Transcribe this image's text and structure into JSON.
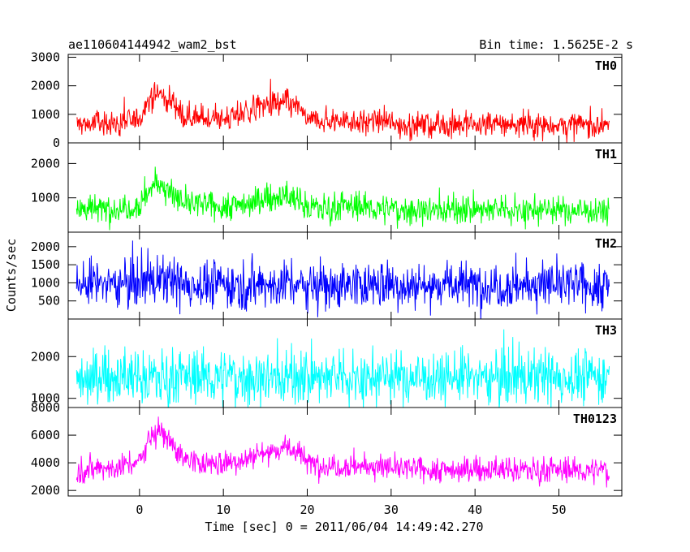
{
  "chart_data": {
    "type": "line",
    "title": "ae110604144942_wam2_bst",
    "subtitle": "Bin time: 1.5625E-2 s",
    "xlabel": "Time [sec] 0 = 2011/06/04 14:49:42.270",
    "ylabel": "Counts/sec",
    "xlim": [
      -8.5,
      57.5
    ],
    "x_ticks": [
      0,
      10,
      20,
      30,
      40,
      50
    ],
    "x_tick_labels": [
      "0",
      "10",
      "20",
      "30",
      "40",
      "50"
    ],
    "x_data_range": [
      -7.5,
      56
    ],
    "grid": false,
    "panels": [
      {
        "name": "TH0",
        "color": "#ff0000",
        "ylim": [
          0,
          3100
        ],
        "y_ticks": [
          0,
          1000,
          2000,
          3000
        ],
        "y_tick_labels": [
          "0",
          "1000",
          "2000",
          "3000"
        ],
        "noise": 230,
        "spike": 500,
        "trend": {
          "x": [
            -7.5,
            -2,
            0,
            1,
            2,
            3,
            4,
            5,
            7,
            10,
            13,
            15,
            17,
            18,
            19,
            20,
            22,
            25,
            28,
            29,
            30,
            35,
            40,
            45,
            50,
            56
          ],
          "y": [
            650,
            700,
            850,
            1450,
            1700,
            1650,
            1450,
            1000,
            850,
            800,
            1100,
            1300,
            1350,
            1350,
            1250,
            800,
            750,
            800,
            700,
            800,
            650,
            620,
            650,
            650,
            630,
            620
          ]
        }
      },
      {
        "name": "TH1",
        "color": "#00ff00",
        "ylim": [
          0,
          2600
        ],
        "y_ticks": [
          1000,
          2000
        ],
        "y_tick_labels": [
          "1000",
          "2000"
        ],
        "noise": 210,
        "spike": 420,
        "trend": {
          "x": [
            -7.5,
            -2,
            0,
            1,
            2,
            3,
            4,
            5,
            7,
            10,
            13,
            15,
            17,
            18,
            19,
            20,
            22,
            25,
            28,
            30,
            35,
            40,
            45,
            50,
            56
          ],
          "y": [
            650,
            700,
            800,
            1150,
            1450,
            1300,
            1050,
            850,
            800,
            750,
            850,
            950,
            1050,
            1000,
            900,
            750,
            700,
            750,
            700,
            650,
            650,
            650,
            650,
            640,
            620
          ]
        }
      },
      {
        "name": "TH2",
        "color": "#0000ff",
        "ylim": [
          0,
          2400
        ],
        "y_ticks": [
          500,
          1000,
          1500,
          2000
        ],
        "y_tick_labels": [
          "500",
          "1000",
          "1500",
          "2000"
        ],
        "noise": 330,
        "spike": 600,
        "trend": {
          "x": [
            -7.5,
            0,
            2,
            3,
            5,
            20,
            56
          ],
          "y": [
            950,
            1000,
            1100,
            1050,
            950,
            950,
            920
          ]
        }
      },
      {
        "name": "TH3",
        "color": "#00ffff",
        "ylim": [
          780,
          2900
        ],
        "y_ticks": [
          1000,
          2000
        ],
        "y_tick_labels": [
          "1000",
          "2000"
        ],
        "noise": 330,
        "spike": 550,
        "trend": {
          "x": [
            -7.5,
            56
          ],
          "y": [
            1500,
            1500
          ]
        }
      },
      {
        "name": "TH0123",
        "color": "#ff00ff",
        "ylim": [
          1600,
          8000
        ],
        "y_ticks": [
          2000,
          4000,
          6000,
          8000
        ],
        "y_tick_labels": [
          "2000",
          "4000",
          "6000",
          "8000"
        ],
        "noise": 460,
        "spike": 900,
        "trend": {
          "x": [
            -7.5,
            -2,
            0,
            1,
            2,
            3,
            4,
            5,
            7,
            10,
            13,
            15,
            17,
            18,
            19,
            20,
            22,
            25,
            28,
            30,
            35,
            40,
            45,
            50,
            56
          ],
          "y": [
            3500,
            3700,
            4100,
            5600,
            6300,
            6100,
            5400,
            4400,
            4000,
            3900,
            4400,
            4800,
            5000,
            5000,
            4700,
            4000,
            3800,
            3800,
            3700,
            3600,
            3500,
            3500,
            3500,
            3450,
            3400
          ]
        }
      }
    ]
  }
}
